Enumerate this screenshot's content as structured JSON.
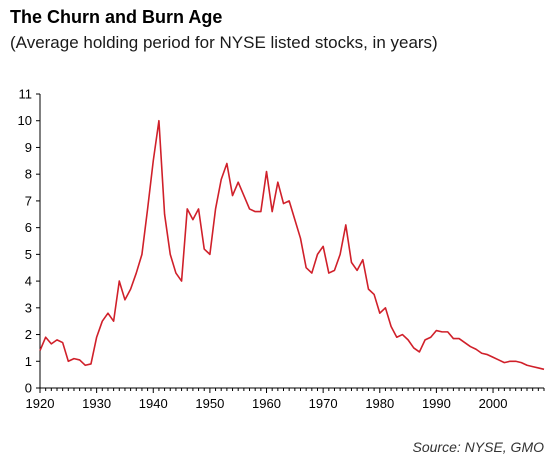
{
  "chart_data": {
    "type": "line",
    "title": "The Churn and Burn Age",
    "subtitle": "(Average holding period for NYSE listed stocks, in years)",
    "source": "Source: NYSE, GMO",
    "xlabel": "",
    "ylabel": "",
    "xlim": [
      1920,
      2009
    ],
    "ylim": [
      0,
      11
    ],
    "x_ticks": [
      1920,
      1930,
      1940,
      1950,
      1960,
      1970,
      1980,
      1990,
      2000
    ],
    "y_ticks": [
      0,
      1,
      2,
      3,
      4,
      5,
      6,
      7,
      8,
      9,
      10,
      11
    ],
    "grid": false,
    "legend": "none",
    "line_color": "#d0202a",
    "series": [
      {
        "x": [
          1920,
          1921,
          1922,
          1923,
          1924,
          1925,
          1926,
          1927,
          1928,
          1929,
          1930,
          1931,
          1932,
          1933,
          1934,
          1935,
          1936,
          1937,
          1938,
          1939,
          1940,
          1941,
          1942,
          1943,
          1944,
          1945,
          1946,
          1947,
          1948,
          1949,
          1950,
          1951,
          1952,
          1953,
          1954,
          1955,
          1956,
          1957,
          1958,
          1959,
          1960,
          1961,
          1962,
          1963,
          1964,
          1965,
          1966,
          1967,
          1968,
          1969,
          1970,
          1971,
          1972,
          1973,
          1974,
          1975,
          1976,
          1977,
          1978,
          1979,
          1980,
          1981,
          1982,
          1983,
          1984,
          1985,
          1986,
          1987,
          1988,
          1989,
          1990,
          1991,
          1992,
          1993,
          1994,
          1995,
          1996,
          1997,
          1998,
          1999,
          2000,
          2001,
          2002,
          2003,
          2004,
          2005,
          2006,
          2007,
          2008,
          2009
        ],
        "values": [
          1.4,
          1.9,
          1.65,
          1.8,
          1.7,
          1.0,
          1.1,
          1.05,
          0.85,
          0.9,
          1.9,
          2.5,
          2.8,
          2.5,
          4.0,
          3.3,
          3.7,
          4.3,
          5.0,
          6.7,
          8.5,
          10.0,
          6.5,
          5.0,
          4.3,
          4.0,
          6.7,
          6.3,
          6.7,
          5.2,
          5.0,
          6.7,
          7.8,
          8.4,
          7.2,
          7.7,
          7.2,
          6.7,
          6.6,
          6.6,
          8.1,
          6.6,
          7.7,
          6.9,
          7.0,
          6.3,
          5.6,
          4.5,
          4.3,
          5.0,
          5.3,
          4.3,
          4.4,
          5.0,
          6.1,
          4.7,
          4.4,
          4.8,
          3.7,
          3.5,
          2.8,
          3.0,
          2.3,
          1.9,
          2.0,
          1.8,
          1.5,
          1.35,
          1.8,
          1.9,
          2.15,
          2.1,
          2.1,
          1.85,
          1.85,
          1.7,
          1.55,
          1.45,
          1.3,
          1.25,
          1.15,
          1.05,
          0.95,
          1.0,
          1.0,
          0.95,
          0.85,
          0.8,
          0.75,
          0.7
        ]
      }
    ]
  }
}
